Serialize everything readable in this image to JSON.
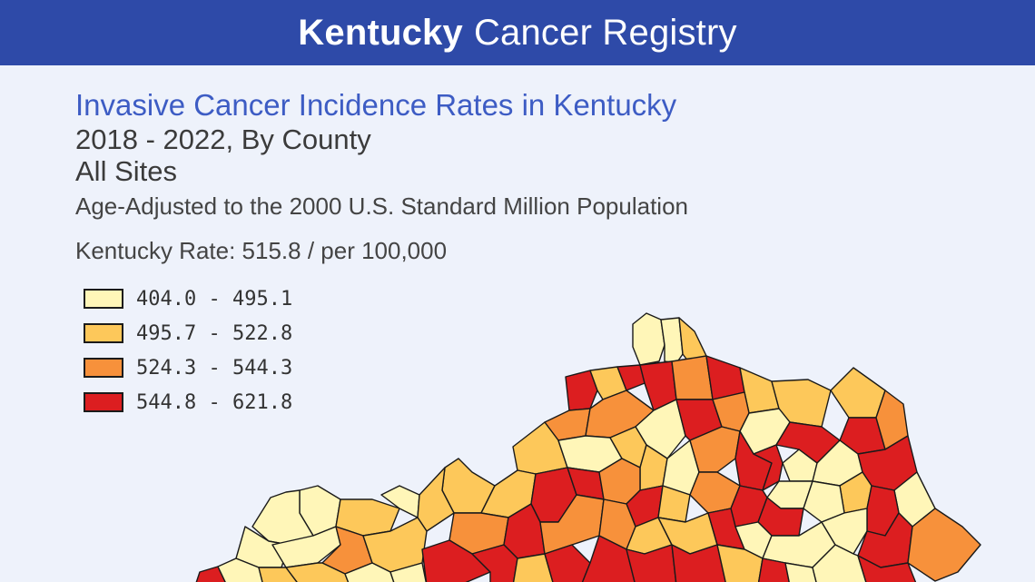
{
  "header": {
    "title_bold": "Kentucky",
    "title_rest": "Cancer Registry"
  },
  "report": {
    "title": "Invasive Cancer Incidence Rates in Kentucky",
    "period": "2018 - 2022, By County",
    "sites": "All Sites",
    "adjustment": "Age-Adjusted to the 2000 U.S. Standard Million Population",
    "state_rate": "Kentucky Rate: 515.8 / per 100,000"
  },
  "legend": [
    {
      "label": "404.0 - 495.1",
      "color": "#fff6b8"
    },
    {
      "label": "495.7 - 522.8",
      "color": "#fdc85a"
    },
    {
      "label": "524.3 - 544.3",
      "color": "#f7913b"
    },
    {
      "label": "544.8 - 621.8",
      "color": "#dc1e20"
    }
  ]
}
